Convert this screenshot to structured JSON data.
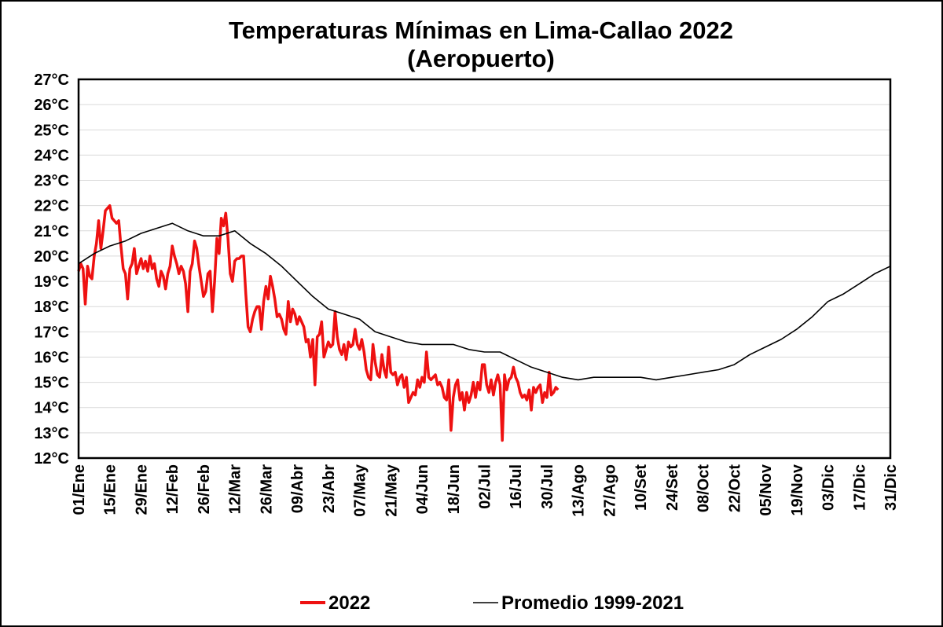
{
  "chart_data": {
    "type": "line",
    "title": "Temperaturas Mínimas en Lima-Callao 2022",
    "subtitle": "(Aeropuerto)",
    "xlabel": "",
    "ylabel": "",
    "ylim": [
      12,
      27
    ],
    "xlim": [
      1,
      365
    ],
    "y_ticks": [
      12,
      13,
      14,
      15,
      16,
      17,
      18,
      19,
      20,
      21,
      22,
      23,
      24,
      25,
      26,
      27
    ],
    "y_tick_suffix": "°C",
    "x_ticks": [
      {
        "day": 1,
        "label": "01/Ene"
      },
      {
        "day": 15,
        "label": "15/Ene"
      },
      {
        "day": 29,
        "label": "29/Ene"
      },
      {
        "day": 43,
        "label": "12/Feb"
      },
      {
        "day": 57,
        "label": "26/Feb"
      },
      {
        "day": 71,
        "label": "12/Mar"
      },
      {
        "day": 85,
        "label": "26/Mar"
      },
      {
        "day": 99,
        "label": "09/Abr"
      },
      {
        "day": 113,
        "label": "23/Abr"
      },
      {
        "day": 127,
        "label": "07/May"
      },
      {
        "day": 141,
        "label": "21/May"
      },
      {
        "day": 155,
        "label": "04/Jun"
      },
      {
        "day": 169,
        "label": "18/Jun"
      },
      {
        "day": 183,
        "label": "02/Jul"
      },
      {
        "day": 197,
        "label": "16/Jul"
      },
      {
        "day": 211,
        "label": "30/Jul"
      },
      {
        "day": 225,
        "label": "13/Ago"
      },
      {
        "day": 239,
        "label": "27/Ago"
      },
      {
        "day": 253,
        "label": "10/Set"
      },
      {
        "day": 267,
        "label": "24/Set"
      },
      {
        "day": 281,
        "label": "08/Oct"
      },
      {
        "day": 295,
        "label": "22/Oct"
      },
      {
        "day": 309,
        "label": "05/Nov"
      },
      {
        "day": 323,
        "label": "19/Nov"
      },
      {
        "day": 337,
        "label": "03/Dic"
      },
      {
        "day": 351,
        "label": "17/Dic"
      },
      {
        "day": 365,
        "label": "31/Dic"
      }
    ],
    "grid": true,
    "legend": "bottom",
    "series": [
      {
        "name": "2022",
        "color": "#ee1111",
        "points": [
          [
            1,
            19.4
          ],
          [
            2,
            19.7
          ],
          [
            3,
            19.5
          ],
          [
            4,
            18.1
          ],
          [
            5,
            19.6
          ],
          [
            6,
            19.2
          ],
          [
            7,
            19.1
          ],
          [
            8,
            20.0
          ],
          [
            9,
            20.5
          ],
          [
            10,
            21.4
          ],
          [
            11,
            20.3
          ],
          [
            12,
            21.0
          ],
          [
            13,
            21.8
          ],
          [
            14,
            21.9
          ],
          [
            15,
            22.0
          ],
          [
            16,
            21.5
          ],
          [
            17,
            21.4
          ],
          [
            18,
            21.3
          ],
          [
            19,
            21.4
          ],
          [
            20,
            20.4
          ],
          [
            21,
            19.5
          ],
          [
            22,
            19.3
          ],
          [
            23,
            18.3
          ],
          [
            24,
            19.5
          ],
          [
            25,
            19.7
          ],
          [
            26,
            20.3
          ],
          [
            27,
            19.3
          ],
          [
            28,
            19.6
          ],
          [
            29,
            19.9
          ],
          [
            30,
            19.5
          ],
          [
            31,
            19.8
          ],
          [
            32,
            19.4
          ],
          [
            33,
            20.0
          ],
          [
            34,
            19.5
          ],
          [
            35,
            19.7
          ],
          [
            36,
            19.1
          ],
          [
            37,
            18.8
          ],
          [
            38,
            19.4
          ],
          [
            39,
            19.2
          ],
          [
            40,
            18.7
          ],
          [
            41,
            19.3
          ],
          [
            42,
            19.6
          ],
          [
            43,
            20.4
          ],
          [
            44,
            20.0
          ],
          [
            45,
            19.7
          ],
          [
            46,
            19.3
          ],
          [
            47,
            19.6
          ],
          [
            48,
            19.4
          ],
          [
            49,
            18.9
          ],
          [
            50,
            17.8
          ],
          [
            51,
            19.4
          ],
          [
            52,
            19.7
          ],
          [
            53,
            20.6
          ],
          [
            54,
            20.3
          ],
          [
            55,
            19.6
          ],
          [
            56,
            19.0
          ],
          [
            57,
            18.4
          ],
          [
            58,
            18.6
          ],
          [
            59,
            19.3
          ],
          [
            60,
            19.4
          ],
          [
            61,
            17.8
          ],
          [
            62,
            19.0
          ],
          [
            63,
            20.7
          ],
          [
            64,
            20.1
          ],
          [
            65,
            21.5
          ],
          [
            66,
            21.2
          ],
          [
            67,
            21.7
          ],
          [
            68,
            20.7
          ],
          [
            69,
            19.3
          ],
          [
            70,
            19.0
          ],
          [
            71,
            19.8
          ],
          [
            72,
            19.9
          ],
          [
            73,
            19.9
          ],
          [
            74,
            20.0
          ],
          [
            75,
            20.0
          ],
          [
            76,
            18.5
          ],
          [
            77,
            17.2
          ],
          [
            78,
            17.0
          ],
          [
            79,
            17.5
          ],
          [
            80,
            17.8
          ],
          [
            81,
            18.0
          ],
          [
            82,
            18.0
          ],
          [
            83,
            17.1
          ],
          [
            84,
            18.2
          ],
          [
            85,
            18.8
          ],
          [
            86,
            18.3
          ],
          [
            87,
            19.2
          ],
          [
            88,
            18.8
          ],
          [
            89,
            18.3
          ],
          [
            90,
            17.6
          ],
          [
            91,
            17.7
          ],
          [
            92,
            17.5
          ],
          [
            93,
            17.1
          ],
          [
            94,
            16.9
          ],
          [
            95,
            18.2
          ],
          [
            96,
            17.4
          ],
          [
            97,
            17.9
          ],
          [
            98,
            17.7
          ],
          [
            99,
            17.3
          ],
          [
            100,
            17.6
          ],
          [
            101,
            17.4
          ],
          [
            102,
            17.2
          ],
          [
            103,
            16.6
          ],
          [
            104,
            16.7
          ],
          [
            105,
            16.0
          ],
          [
            106,
            16.7
          ],
          [
            107,
            14.9
          ],
          [
            108,
            16.8
          ],
          [
            109,
            16.9
          ],
          [
            110,
            17.4
          ],
          [
            111,
            16.0
          ],
          [
            112,
            16.3
          ],
          [
            113,
            16.6
          ],
          [
            114,
            16.4
          ],
          [
            115,
            16.5
          ],
          [
            116,
            17.8
          ],
          [
            117,
            16.8
          ],
          [
            118,
            16.3
          ],
          [
            119,
            16.1
          ],
          [
            120,
            16.5
          ],
          [
            121,
            15.9
          ],
          [
            122,
            16.6
          ],
          [
            123,
            16.4
          ],
          [
            124,
            16.5
          ],
          [
            125,
            17.1
          ],
          [
            126,
            16.5
          ],
          [
            127,
            16.3
          ],
          [
            128,
            16.7
          ],
          [
            129,
            16.2
          ],
          [
            130,
            15.5
          ],
          [
            131,
            15.2
          ],
          [
            132,
            15.1
          ],
          [
            133,
            16.5
          ],
          [
            134,
            15.8
          ],
          [
            135,
            15.3
          ],
          [
            136,
            15.2
          ],
          [
            137,
            16.1
          ],
          [
            138,
            15.5
          ],
          [
            139,
            15.2
          ],
          [
            140,
            16.4
          ],
          [
            141,
            15.4
          ],
          [
            142,
            15.3
          ],
          [
            143,
            15.4
          ],
          [
            144,
            14.9
          ],
          [
            145,
            15.2
          ],
          [
            146,
            15.3
          ],
          [
            147,
            14.8
          ],
          [
            148,
            15.2
          ],
          [
            149,
            14.2
          ],
          [
            150,
            14.4
          ],
          [
            151,
            14.6
          ],
          [
            152,
            14.5
          ],
          [
            153,
            15.1
          ],
          [
            154,
            14.8
          ],
          [
            155,
            15.2
          ],
          [
            156,
            15.0
          ],
          [
            157,
            16.2
          ],
          [
            158,
            15.2
          ],
          [
            159,
            15.1
          ],
          [
            160,
            15.2
          ],
          [
            161,
            15.3
          ],
          [
            162,
            14.9
          ],
          [
            163,
            15.0
          ],
          [
            164,
            14.8
          ],
          [
            165,
            14.4
          ],
          [
            166,
            14.3
          ],
          [
            167,
            15.1
          ],
          [
            168,
            13.1
          ],
          [
            169,
            14.4
          ],
          [
            170,
            14.9
          ],
          [
            171,
            15.1
          ],
          [
            172,
            14.3
          ],
          [
            173,
            14.6
          ],
          [
            174,
            13.9
          ],
          [
            175,
            14.6
          ],
          [
            176,
            14.2
          ],
          [
            177,
            14.5
          ],
          [
            178,
            15.0
          ],
          [
            179,
            14.4
          ],
          [
            180,
            15.0
          ],
          [
            181,
            14.7
          ],
          [
            182,
            15.7
          ],
          [
            183,
            15.7
          ],
          [
            184,
            14.9
          ],
          [
            185,
            14.6
          ],
          [
            186,
            15.1
          ],
          [
            187,
            14.5
          ],
          [
            188,
            15.0
          ],
          [
            189,
            15.3
          ],
          [
            190,
            14.9
          ],
          [
            191,
            12.7
          ],
          [
            192,
            15.3
          ],
          [
            193,
            14.7
          ],
          [
            194,
            15.1
          ],
          [
            195,
            15.2
          ],
          [
            196,
            15.6
          ],
          [
            197,
            15.2
          ],
          [
            198,
            15.0
          ],
          [
            199,
            14.6
          ],
          [
            200,
            14.4
          ],
          [
            201,
            14.5
          ],
          [
            202,
            14.3
          ],
          [
            203,
            14.7
          ],
          [
            204,
            13.9
          ],
          [
            205,
            14.8
          ],
          [
            206,
            14.6
          ],
          [
            207,
            14.8
          ],
          [
            208,
            14.9
          ],
          [
            209,
            14.2
          ],
          [
            210,
            14.6
          ],
          [
            211,
            14.4
          ],
          [
            212,
            15.4
          ],
          [
            213,
            14.5
          ],
          [
            214,
            14.6
          ],
          [
            215,
            14.8
          ],
          [
            216,
            14.7
          ]
        ]
      },
      {
        "name": "Promedio 1999-2021",
        "color": "#000000",
        "points": [
          [
            1,
            19.7
          ],
          [
            8,
            20.1
          ],
          [
            15,
            20.4
          ],
          [
            22,
            20.6
          ],
          [
            29,
            20.9
          ],
          [
            36,
            21.1
          ],
          [
            43,
            21.3
          ],
          [
            50,
            21.0
          ],
          [
            57,
            20.8
          ],
          [
            64,
            20.8
          ],
          [
            71,
            21.0
          ],
          [
            78,
            20.5
          ],
          [
            85,
            20.1
          ],
          [
            92,
            19.6
          ],
          [
            99,
            19.0
          ],
          [
            106,
            18.4
          ],
          [
            113,
            17.9
          ],
          [
            120,
            17.7
          ],
          [
            127,
            17.5
          ],
          [
            134,
            17.0
          ],
          [
            141,
            16.8
          ],
          [
            148,
            16.6
          ],
          [
            155,
            16.5
          ],
          [
            162,
            16.5
          ],
          [
            169,
            16.5
          ],
          [
            176,
            16.3
          ],
          [
            183,
            16.2
          ],
          [
            190,
            16.2
          ],
          [
            197,
            15.9
          ],
          [
            204,
            15.6
          ],
          [
            211,
            15.4
          ],
          [
            218,
            15.2
          ],
          [
            225,
            15.1
          ],
          [
            232,
            15.2
          ],
          [
            239,
            15.2
          ],
          [
            246,
            15.2
          ],
          [
            253,
            15.2
          ],
          [
            260,
            15.1
          ],
          [
            267,
            15.2
          ],
          [
            274,
            15.3
          ],
          [
            281,
            15.4
          ],
          [
            288,
            15.5
          ],
          [
            295,
            15.7
          ],
          [
            302,
            16.1
          ],
          [
            309,
            16.4
          ],
          [
            316,
            16.7
          ],
          [
            323,
            17.1
          ],
          [
            330,
            17.6
          ],
          [
            337,
            18.2
          ],
          [
            344,
            18.5
          ],
          [
            351,
            18.9
          ],
          [
            358,
            19.3
          ],
          [
            365,
            19.6
          ]
        ]
      }
    ]
  }
}
